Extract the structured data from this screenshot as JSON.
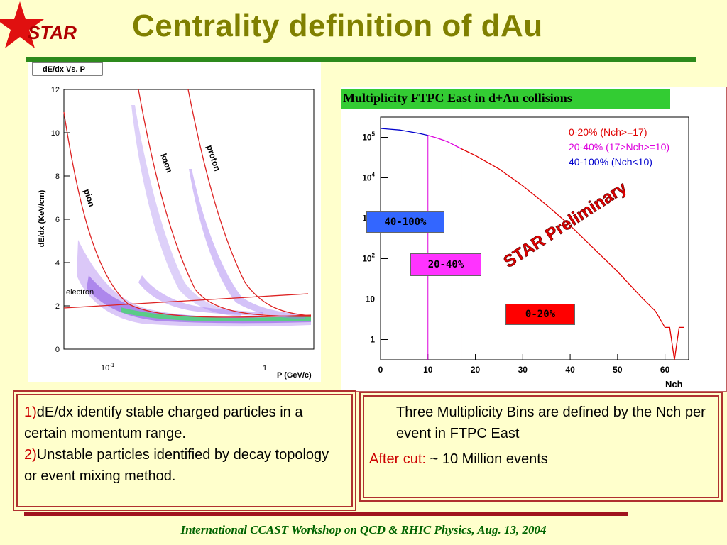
{
  "header": {
    "logo_text": "STAR",
    "title": "Centrality definition of dAu"
  },
  "left_plot": {
    "tag": "dE/dx Vs. P",
    "ylabel": "dE/dx (KeV/cm)",
    "xlabel": "P (GeV/c)",
    "yticks": [
      "0",
      "2",
      "4",
      "6",
      "8",
      "10",
      "12"
    ],
    "xtick_a_base": "10",
    "xtick_a_exp": "-1",
    "xtick_b": "1",
    "curve_labels": {
      "pion": "pion",
      "kaon": "kaon",
      "proton": "proton",
      "electron": "electron"
    },
    "colors": {
      "curves": "#dd2222",
      "band_outer": "#9955ee",
      "band_core": "#33cc66"
    }
  },
  "chart_data": {
    "type": "line",
    "title": "Multiplicity FTPC East in d+Au collisions",
    "xlabel": "Nch",
    "ylabel": "",
    "xlim": [
      0,
      65
    ],
    "ylim_log10": [
      -0.5,
      5.5
    ],
    "scale_y": "log",
    "xticks": [
      0,
      10,
      20,
      30,
      40,
      50,
      60
    ],
    "yticks_labels": [
      "1",
      "10",
      "10^2",
      "10^3",
      "10^4",
      "10^5"
    ],
    "cuts": [
      10,
      17
    ],
    "series": [
      {
        "name": "0-20% (Nch>=17)",
        "color": "#e00000",
        "x": [
          17,
          20,
          25,
          30,
          35,
          40,
          45,
          50,
          55,
          58,
          60,
          61,
          62,
          63,
          64
        ],
        "log10_y": [
          4.72,
          4.55,
          4.22,
          3.8,
          3.33,
          2.82,
          2.25,
          1.68,
          1.05,
          0.7,
          0.3,
          0.3,
          -0.5,
          0.3,
          0.3
        ]
      },
      {
        "name": "20-40% (17>Nch>=10)",
        "color": "#dd00dd",
        "x": [
          10,
          12,
          14,
          17
        ],
        "log10_y": [
          5.05,
          4.98,
          4.9,
          4.72
        ]
      },
      {
        "name": "40-100% (Nch<10)",
        "color": "#0000cc",
        "x": [
          0,
          2,
          4,
          6,
          8,
          10
        ],
        "log10_y": [
          5.22,
          5.2,
          5.18,
          5.14,
          5.1,
          5.05
        ]
      }
    ],
    "legend": [
      "0-20% (Nch>=17)",
      "20-40% (17>Nch>=10)",
      "40-100% (Nch<10)"
    ],
    "legend_placement": "top-right",
    "bin_labels": [
      {
        "text": "40-100%",
        "bg": "#3366ff",
        "fg": "#000000"
      },
      {
        "text": "20-40%",
        "bg": "#ff33ff",
        "fg": "#000000"
      },
      {
        "text": "0-20%",
        "bg": "#ff0000",
        "fg": "#000000"
      }
    ],
    "watermark": "STAR Preliminary"
  },
  "left_box": {
    "item1_num": "1)",
    "item1_text": "dE/dx identify stable charged particles in a certain momentum range.",
    "item2_num": "2)",
    "item2_text": "Unstable particles identified by decay topology or event mixing method."
  },
  "right_box": {
    "line1": "Three Multiplicity Bins are defined by the Nch per event in FTPC East",
    "after_cut_label": "After cut:",
    "after_cut_value": " ~  10 Million events"
  },
  "footer": {
    "text": "International CCAST Workshop on QCD & RHIC Physics, Aug. 13, 2004"
  }
}
